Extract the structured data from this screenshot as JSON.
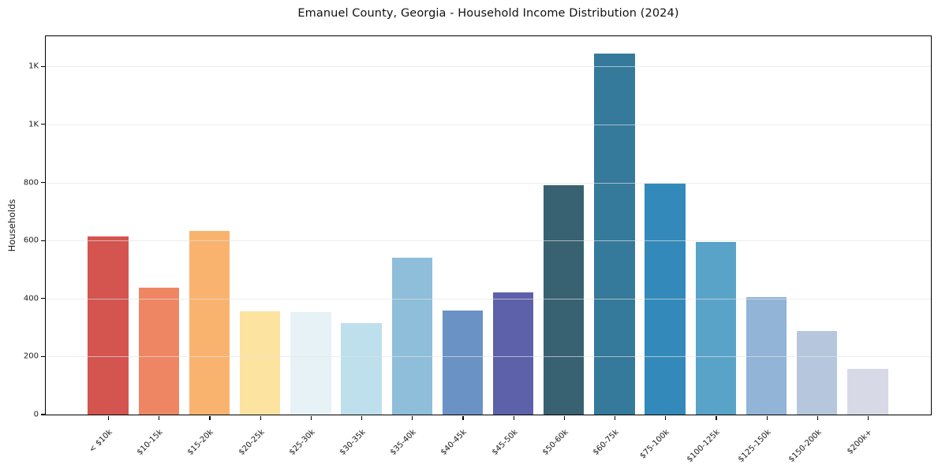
{
  "chart_data": {
    "type": "bar",
    "title": "Emanuel County, Georgia - Household Income Distribution (2024)",
    "xlabel": "",
    "ylabel": "Households",
    "ylim": [
      0,
      1304
    ],
    "grid": "horizontal, drawn over bars, light gray",
    "legend": "none",
    "categories": [
      "< $10k",
      "$10-15k",
      "$15-20k",
      "$20-25k",
      "$25-30k",
      "$30-35k",
      "$35-40k",
      "$40-45k",
      "$45-50k",
      "$50-60k",
      "$60-75k",
      "$75-100k",
      "$100-125k",
      "$125-150k",
      "$150-200k",
      "$200k+"
    ],
    "values": [
      615,
      437,
      633,
      356,
      352,
      315,
      541,
      358,
      420,
      790,
      1243,
      797,
      596,
      404,
      288,
      158
    ],
    "bar_colors": [
      "#d4544f",
      "#ef8663",
      "#f9b36e",
      "#fce3a0",
      "#e7f2f6",
      "#bedfec",
      "#8ebeda",
      "#6a92c4",
      "#5c61aa",
      "#386172",
      "#35799b",
      "#338aba",
      "#5aa3c8",
      "#91b4d7",
      "#b6c7dd",
      "#d7d9e7"
    ],
    "yticks": {
      "values": [
        0,
        200,
        400,
        600,
        800,
        1000,
        1200
      ],
      "labels": [
        "0",
        "200",
        "400",
        "600",
        "800",
        "1K",
        "1K"
      ]
    }
  }
}
